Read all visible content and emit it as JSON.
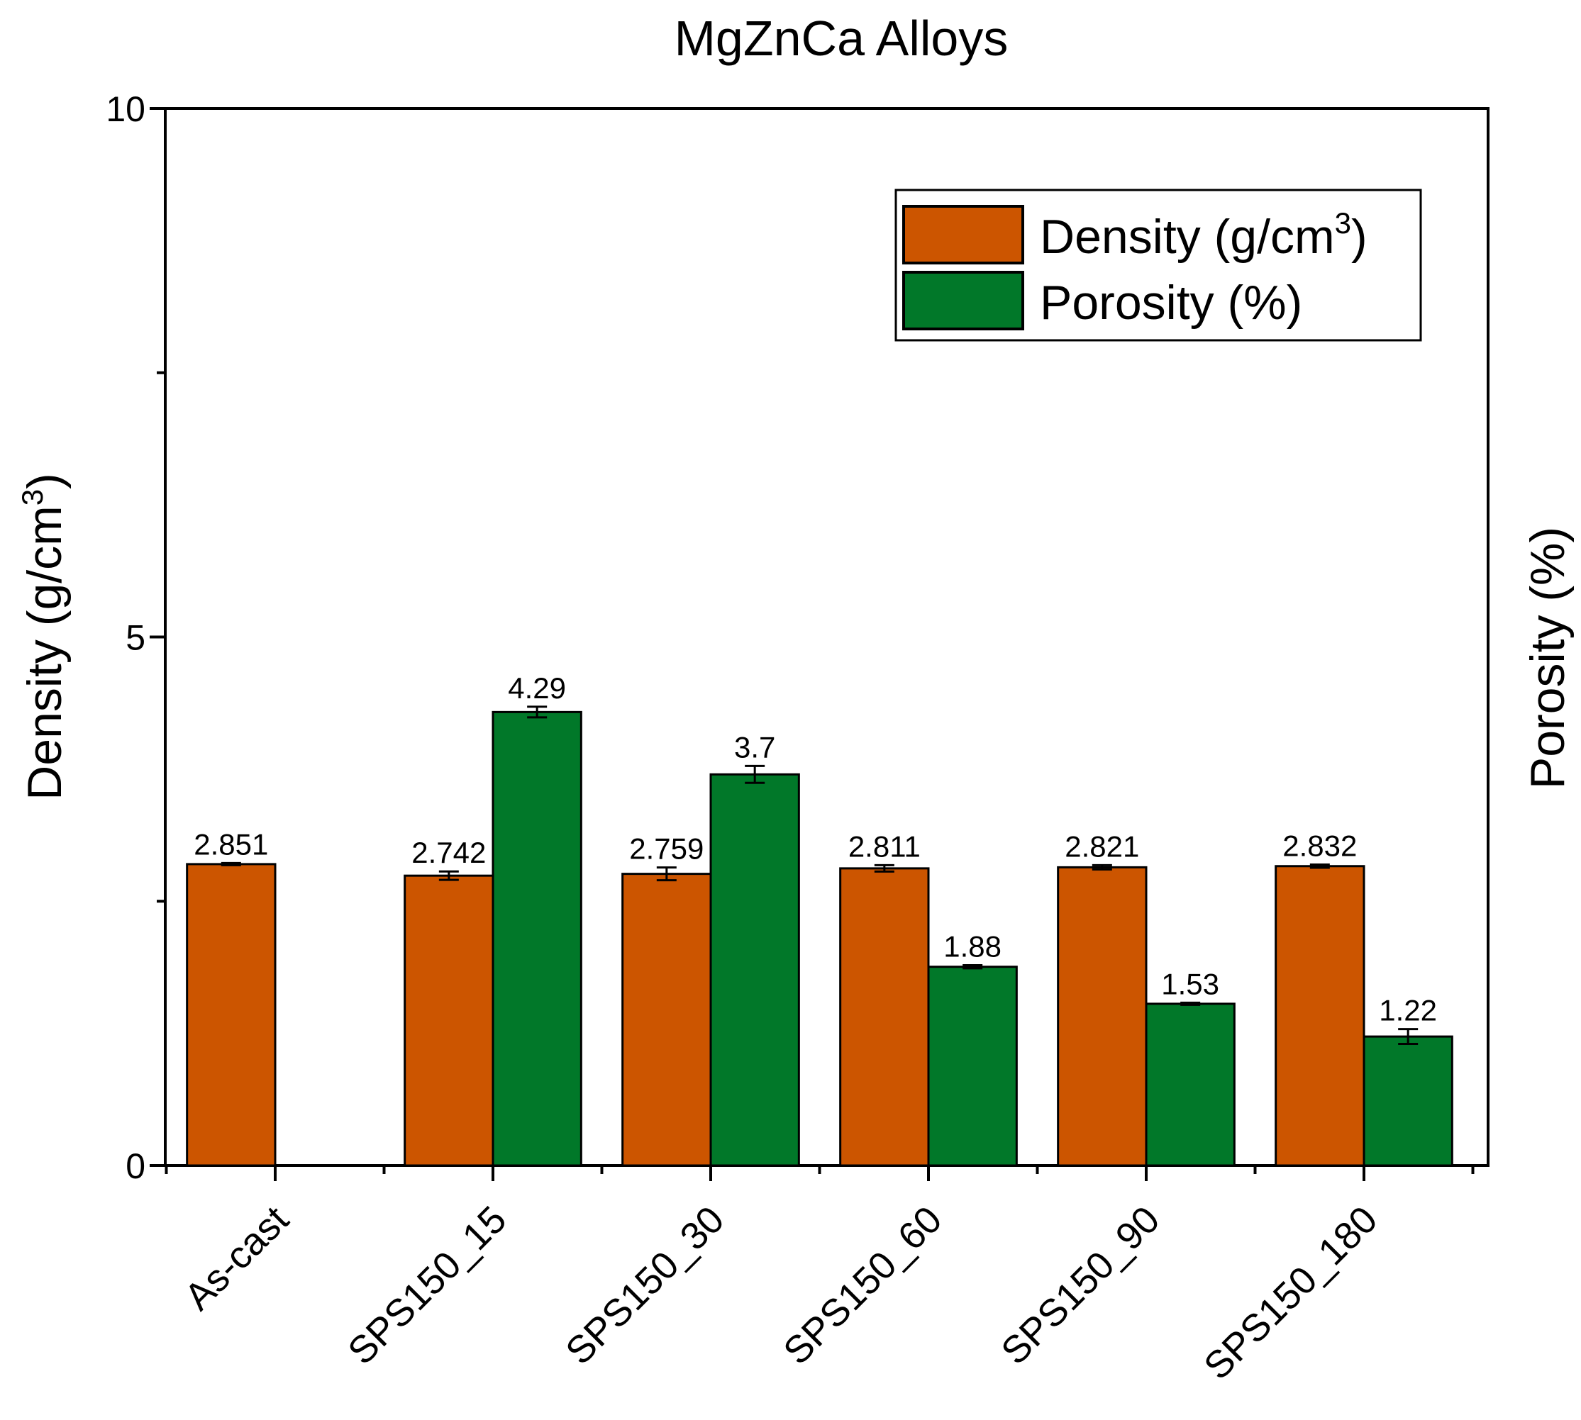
{
  "chart_data": {
    "type": "bar",
    "title": "MgZnCa Alloys",
    "categories": [
      "As-cast",
      "SPS150_15",
      "SPS150_30",
      "SPS150_60",
      "SPS150_90",
      "SPS150_180"
    ],
    "series": [
      {
        "name": "Density (g/cm3)",
        "legend_base": "Density (g/cm",
        "legend_sup": "3",
        "legend_close": ")",
        "color": "#cc5500",
        "values": [
          2.851,
          2.742,
          2.759,
          2.811,
          2.821,
          2.832
        ],
        "errors": [
          0.01,
          0.04,
          0.06,
          0.03,
          0.02,
          0.015
        ],
        "labels": [
          "2.851",
          "2.742",
          "2.759",
          "2.811",
          "2.821",
          "2.832"
        ]
      },
      {
        "name": "Porosity (%)",
        "legend_base": "Porosity (%)",
        "color": "#017829",
        "values": [
          null,
          4.29,
          3.7,
          1.88,
          1.53,
          1.22
        ],
        "errors": [
          null,
          0.05,
          0.08,
          0.015,
          0.01,
          0.07
        ],
        "labels": [
          "",
          "4.29",
          "3.7",
          "1.88",
          "1.53",
          "1.22"
        ]
      }
    ],
    "ylabel_left": "Density (g/cm",
    "ylabel_left_sup": "3",
    "ylabel_left_close": ")",
    "ylabel_right": "Porosity (%)",
    "ylim": [
      0,
      10
    ],
    "yticks": [
      0,
      5,
      10
    ],
    "ytick_labels": [
      "0",
      "5",
      "10"
    ],
    "legend_position": "top-right",
    "grid": false
  }
}
